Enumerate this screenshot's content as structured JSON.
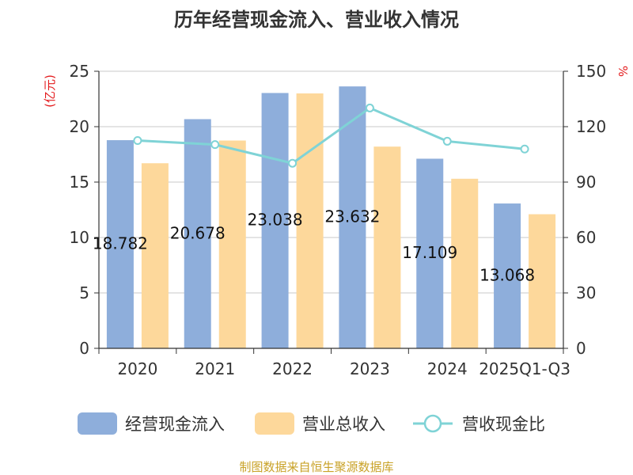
{
  "chart_data": {
    "type": "bar",
    "title": "历年经营现金流入、营业收入情况",
    "categories": [
      "2020",
      "2021",
      "2022",
      "2023",
      "2024",
      "2025Q1-Q3"
    ],
    "left_axis": {
      "unit_label": "(亿元)",
      "ylim": [
        0,
        25
      ],
      "ticks": [
        "0",
        "5",
        "10",
        "15",
        "20",
        "25"
      ]
    },
    "right_axis": {
      "unit_label": "%",
      "ylim": [
        0,
        150
      ],
      "ticks": [
        "0",
        "30",
        "60",
        "90",
        "120",
        "150"
      ]
    },
    "series": [
      {
        "name": "经营现金流入",
        "type": "bar",
        "axis": "left",
        "color": "#8eaedb",
        "values": [
          18.782,
          20.678,
          23.038,
          23.632,
          17.109,
          13.068
        ],
        "data_labels": [
          "18.782",
          "20.678",
          "23.038",
          "23.632",
          "17.109",
          "13.068"
        ]
      },
      {
        "name": "营业总收入",
        "type": "bar",
        "axis": "left",
        "color": "#fdd89b",
        "values": [
          16.7,
          18.75,
          23.0,
          18.2,
          15.3,
          12.1
        ]
      },
      {
        "name": "营收现金比",
        "type": "line",
        "axis": "right",
        "color": "#7fd3d6",
        "values": [
          112.5,
          110.3,
          100.2,
          130.1,
          112.1,
          107.9
        ]
      }
    ],
    "grid": true,
    "legend_position": "bottom"
  },
  "footer": "制图数据来自恒生聚源数据库"
}
